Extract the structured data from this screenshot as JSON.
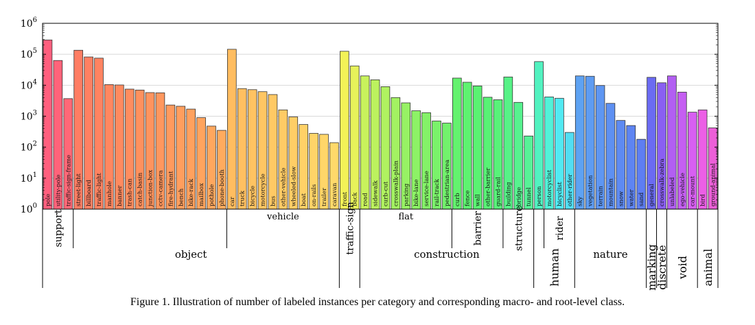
{
  "caption": "Figure 1. Illustration of number of labeled instances per category and corresponding macro- and root-level class.",
  "chart_data": {
    "type": "bar",
    "yscale": "log",
    "ylim": [
      1,
      1000000
    ],
    "yticks": [
      {
        "value": 1,
        "base": "10",
        "exp": "0"
      },
      {
        "value": 10,
        "base": "10",
        "exp": "1"
      },
      {
        "value": 100,
        "base": "10",
        "exp": "2"
      },
      {
        "value": 1000,
        "base": "10",
        "exp": "3"
      },
      {
        "value": 10000,
        "base": "10",
        "exp": "4"
      },
      {
        "value": 100000,
        "base": "10",
        "exp": "5"
      },
      {
        "value": 1000000,
        "base": "10",
        "exp": "6"
      }
    ],
    "grid": true,
    "categories": [
      {
        "name": "pole",
        "value": 290000,
        "color": "#ff5f7e"
      },
      {
        "name": "utility-pole",
        "value": 63000,
        "color": "#ff637a"
      },
      {
        "name": "traffic-sign-frame",
        "value": 3700,
        "color": "#ff6877"
      },
      {
        "name": "street-light",
        "value": 135000,
        "color": "#ff7d63"
      },
      {
        "name": "billboard",
        "value": 82000,
        "color": "#ff8062"
      },
      {
        "name": "traffic-light",
        "value": 75000,
        "color": "#ff8361"
      },
      {
        "name": "manhole",
        "value": 10500,
        "color": "#ff8760"
      },
      {
        "name": "banner",
        "value": 10200,
        "color": "#ff8a5f"
      },
      {
        "name": "trash-can",
        "value": 7500,
        "color": "#ff8d5f"
      },
      {
        "name": "catch-basin",
        "value": 7000,
        "color": "#ff915e"
      },
      {
        "name": "junction-box",
        "value": 5800,
        "color": "#ff945e"
      },
      {
        "name": "cctv-camera",
        "value": 5700,
        "color": "#ff975e"
      },
      {
        "name": "fire-hydrant",
        "value": 2300,
        "color": "#ff9a5e"
      },
      {
        "name": "bench",
        "value": 2100,
        "color": "#ff9e5e"
      },
      {
        "name": "bike-rack",
        "value": 1700,
        "color": "#ffa15e"
      },
      {
        "name": "mailbox",
        "value": 900,
        "color": "#ffa45e"
      },
      {
        "name": "pothole",
        "value": 480,
        "color": "#ffa75e"
      },
      {
        "name": "phone-booth",
        "value": 350,
        "color": "#ffab5e"
      },
      {
        "name": "car",
        "value": 145000,
        "color": "#ffbd60"
      },
      {
        "name": "truck",
        "value": 7800,
        "color": "#ffc061"
      },
      {
        "name": "bicycle",
        "value": 7200,
        "color": "#ffc362"
      },
      {
        "name": "motorcycle",
        "value": 6200,
        "color": "#ffc663"
      },
      {
        "name": "bus",
        "value": 5000,
        "color": "#ffc964"
      },
      {
        "name": "other-vehicle",
        "value": 1600,
        "color": "#ffcb65"
      },
      {
        "name": "wheeled-slow",
        "value": 950,
        "color": "#ffce66"
      },
      {
        "name": "boat",
        "value": 540,
        "color": "#ffd167"
      },
      {
        "name": "on-rails",
        "value": 280,
        "color": "#ffd468"
      },
      {
        "name": "trailer",
        "value": 260,
        "color": "#ffd669"
      },
      {
        "name": "caravan",
        "value": 140,
        "color": "#ffd96a"
      },
      {
        "name": "front",
        "value": 125000,
        "color": "#f3f257"
      },
      {
        "name": "back",
        "value": 42000,
        "color": "#e7f25a"
      },
      {
        "name": "road",
        "value": 20000,
        "color": "#c8f25c"
      },
      {
        "name": "sidewalk",
        "value": 15000,
        "color": "#bcf25e"
      },
      {
        "name": "curb-cut",
        "value": 9000,
        "color": "#b0f260"
      },
      {
        "name": "crosswalk-plain",
        "value": 4000,
        "color": "#a3f262"
      },
      {
        "name": "parking",
        "value": 2700,
        "color": "#97f264"
      },
      {
        "name": "bike-lane",
        "value": 1500,
        "color": "#8df266"
      },
      {
        "name": "service-lane",
        "value": 1300,
        "color": "#84f268"
      },
      {
        "name": "rail-track",
        "value": 700,
        "color": "#7af26a"
      },
      {
        "name": "pedestrian-area",
        "value": 600,
        "color": "#72f26c"
      },
      {
        "name": "curb",
        "value": 17000,
        "color": "#63f26e"
      },
      {
        "name": "fence",
        "value": 12500,
        "color": "#5ef270"
      },
      {
        "name": "wall",
        "value": 9500,
        "color": "#5af272"
      },
      {
        "name": "other-barrier",
        "value": 4100,
        "color": "#58f275"
      },
      {
        "name": "guard-rail",
        "value": 3400,
        "color": "#58f279"
      },
      {
        "name": "building",
        "value": 18500,
        "color": "#57f287"
      },
      {
        "name": "bridge",
        "value": 2800,
        "color": "#57f28f"
      },
      {
        "name": "tunnel",
        "value": 230,
        "color": "#57f297"
      },
      {
        "name": "person",
        "value": 58000,
        "color": "#52f2c0"
      },
      {
        "name": "motorcyclist",
        "value": 4200,
        "color": "#52f2d8"
      },
      {
        "name": "bicyclist",
        "value": 3800,
        "color": "#52eaf2"
      },
      {
        "name": "other-rider",
        "value": 300,
        "color": "#52def2"
      },
      {
        "name": "sky",
        "value": 20000,
        "color": "#5ea2f2"
      },
      {
        "name": "vegetation",
        "value": 19500,
        "color": "#5e9cf2"
      },
      {
        "name": "terrain",
        "value": 9800,
        "color": "#5e96f2"
      },
      {
        "name": "mountain",
        "value": 2600,
        "color": "#5e90f2"
      },
      {
        "name": "snow",
        "value": 730,
        "color": "#5e8af2"
      },
      {
        "name": "water",
        "value": 500,
        "color": "#5e84f2"
      },
      {
        "name": "sand",
        "value": 180,
        "color": "#5e7ef2"
      },
      {
        "name": "general",
        "value": 18000,
        "color": "#6b6bf2"
      },
      {
        "name": "crosswalk-zebra",
        "value": 12000,
        "color": "#8a5ff2"
      },
      {
        "name": "unlabeled",
        "value": 20000,
        "color": "#b25ff2"
      },
      {
        "name": "ego-vehicle",
        "value": 6000,
        "color": "#c55ff2"
      },
      {
        "name": "car-mount",
        "value": 1350,
        "color": "#d85ff2"
      },
      {
        "name": "bird",
        "value": 1600,
        "color": "#ec5fe6"
      },
      {
        "name": "ground-animal",
        "value": 420,
        "color": "#ec5fd8"
      }
    ],
    "macro_groups": [
      {
        "label": "support",
        "start": 0,
        "end": 2
      },
      {
        "label": "vehicle",
        "start": 18,
        "end": 28
      },
      {
        "label": "traffic-sign",
        "start": 29,
        "end": 30
      },
      {
        "label": "flat",
        "start": 31,
        "end": 39
      },
      {
        "label": "barrier",
        "start": 40,
        "end": 44
      },
      {
        "label": "structure",
        "start": 45,
        "end": 47
      },
      {
        "label": "rider",
        "start": 49,
        "end": 51
      }
    ],
    "root_groups": [
      {
        "label": "object",
        "start": 0,
        "end": 28
      },
      {
        "label": "construction",
        "start": 31,
        "end": 47
      },
      {
        "label": "human",
        "start": 48,
        "end": 51
      },
      {
        "label": "nature",
        "start": 52,
        "end": 58
      },
      {
        "label": "marking",
        "start": 59,
        "end": 59
      },
      {
        "label": "discrete",
        "start": 60,
        "end": 60
      },
      {
        "label": "void",
        "start": 61,
        "end": 63
      },
      {
        "label": "animal",
        "start": 64,
        "end": 65
      }
    ]
  }
}
